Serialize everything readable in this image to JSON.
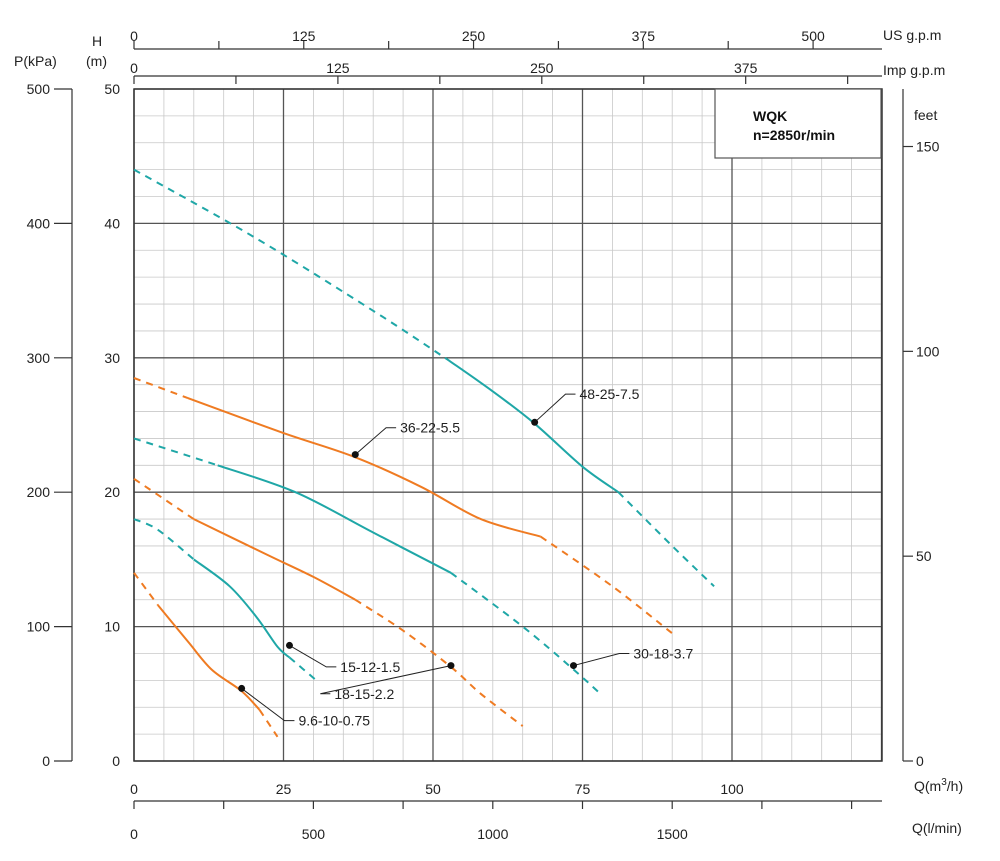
{
  "colors": {
    "teal": "#1fa7a7",
    "orange": "#ef7b22",
    "grid": "#555555",
    "minor_grid": "#c8c8c8"
  },
  "chart_data": {
    "type": "line",
    "title": "WQK",
    "subtitle": "n=2850r/min",
    "x_primary": {
      "label": "Q(m³/h)",
      "label_base": "Q(m",
      "label_sup": "3",
      "label_tail": "/h)",
      "ticks": [
        0,
        25,
        50,
        75,
        100
      ],
      "range": [
        0,
        125
      ]
    },
    "x_us_gpm": {
      "label": "US g.p.m",
      "ticks": [
        0,
        125,
        250,
        375,
        500
      ]
    },
    "x_imp_gpm": {
      "label": "Imp g.p.m",
      "ticks": [
        0,
        125,
        250,
        375
      ]
    },
    "x_lmin": {
      "label": "Q(l/min)",
      "ticks": [
        0,
        500,
        1000,
        1500
      ]
    },
    "y_head": {
      "label_top": "H",
      "label_unit": "(m)",
      "ticks": [
        0,
        10,
        20,
        30,
        40,
        50
      ],
      "range": [
        0,
        50
      ]
    },
    "y_pressure": {
      "label": "P(kPa)",
      "ticks": [
        0,
        100,
        200,
        300,
        400,
        500
      ]
    },
    "y_feet": {
      "label": "feet",
      "ticks": [
        0,
        50,
        100,
        150
      ]
    },
    "grid": true,
    "series": [
      {
        "name": "9.6-10-0.75",
        "color": "orange",
        "dash_start": [
          [
            0,
            14
          ],
          [
            4,
            11.6
          ]
        ],
        "solid": [
          [
            4,
            11.6
          ],
          [
            9,
            8.9
          ],
          [
            13,
            6.8
          ],
          [
            18,
            5.2
          ],
          [
            21,
            3.8
          ]
        ],
        "dash_end": [
          [
            21,
            3.8
          ],
          [
            24,
            1.8
          ]
        ],
        "marker": [
          18,
          5.4
        ],
        "label_pos": [
          27.5,
          3
        ]
      },
      {
        "name": "15-12-1.5",
        "color": "teal",
        "dash_start": [
          [
            0,
            18
          ],
          [
            4,
            17.2
          ],
          [
            10,
            15
          ]
        ],
        "solid": [
          [
            10,
            15
          ],
          [
            16,
            13
          ],
          [
            20.5,
            10.7
          ],
          [
            24,
            8.5
          ],
          [
            26,
            7.7
          ]
        ],
        "dash_end": [
          [
            26,
            7.7
          ],
          [
            30.5,
            6
          ]
        ],
        "marker": [
          26,
          8.6
        ],
        "label_pos": [
          34.5,
          7
        ]
      },
      {
        "name": "18-15-2.2",
        "color": "orange",
        "dash_start": [
          [
            0,
            21
          ],
          [
            10,
            18
          ]
        ],
        "solid": [
          [
            10,
            18
          ],
          [
            22,
            15.4
          ],
          [
            30,
            13.7
          ],
          [
            37,
            12
          ]
        ],
        "dash_end": [
          [
            37,
            12
          ],
          [
            45,
            9.7
          ],
          [
            53,
            7
          ],
          [
            58,
            5
          ],
          [
            65,
            2.6
          ]
        ],
        "marker": [
          53,
          7.1
        ],
        "label_pos": [
          33.5,
          5
        ]
      },
      {
        "name": "30-18-3.7",
        "color": "teal",
        "dash_start": [
          [
            0,
            24
          ],
          [
            14,
            22
          ]
        ],
        "solid": [
          [
            14,
            22
          ],
          [
            27,
            20
          ],
          [
            40,
            17
          ],
          [
            53,
            14
          ]
        ],
        "dash_end": [
          [
            53,
            14
          ],
          [
            65,
            10
          ],
          [
            73,
            7
          ],
          [
            78,
            5
          ]
        ],
        "marker": [
          73.5,
          7.1
        ],
        "label_pos": [
          83.5,
          8
        ]
      },
      {
        "name": "36-22-5.5",
        "color": "orange",
        "dash_start": [
          [
            0,
            28.5
          ],
          [
            9,
            27
          ]
        ],
        "solid": [
          [
            9,
            27
          ],
          [
            25,
            24.4
          ],
          [
            37,
            22.6
          ],
          [
            48,
            20.4
          ],
          [
            58,
            18
          ],
          [
            68,
            16.7
          ]
        ],
        "dash_end": [
          [
            68,
            16.7
          ],
          [
            80,
            13
          ],
          [
            90,
            9.5
          ]
        ],
        "marker": [
          37,
          22.8
        ],
        "label_pos": [
          44.5,
          24.8
        ]
      },
      {
        "name": "48-25-7.5",
        "color": "teal",
        "dash_start": [
          [
            0,
            44
          ],
          [
            20,
            39
          ],
          [
            40,
            33.5
          ],
          [
            52,
            30
          ]
        ],
        "solid": [
          [
            52,
            30
          ],
          [
            60,
            27.5
          ],
          [
            67,
            25.1
          ],
          [
            75,
            21.9
          ],
          [
            81,
            20
          ]
        ],
        "dash_end": [
          [
            81,
            20
          ],
          [
            90,
            16
          ],
          [
            97,
            13
          ]
        ],
        "marker": [
          67,
          25.2
        ],
        "label_pos": [
          74.5,
          27.3
        ]
      }
    ]
  }
}
